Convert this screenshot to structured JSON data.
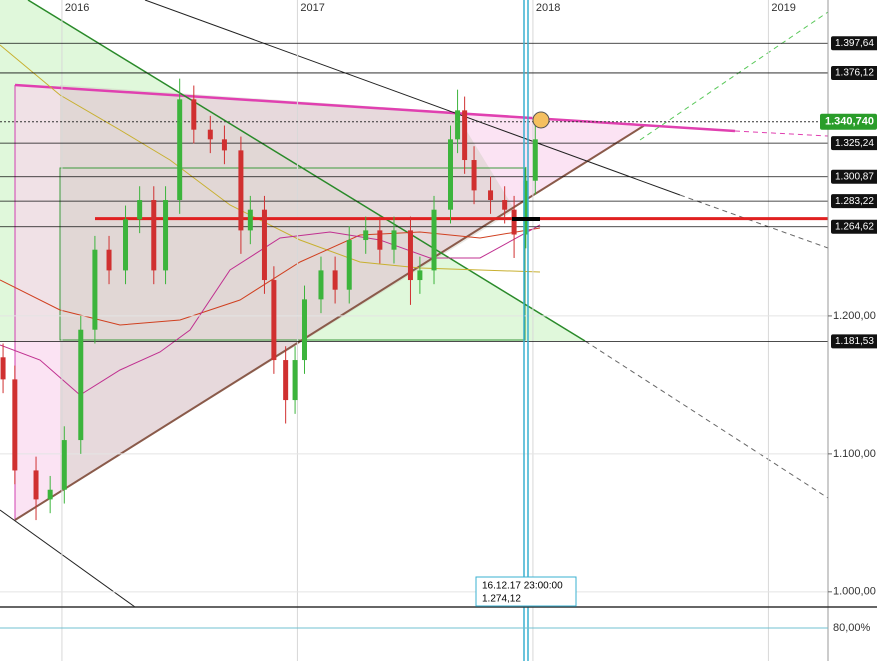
{
  "chart_data": {
    "type": "candlestick",
    "xlim": [
      2015.737,
      2019.253
    ],
    "xticks": [
      2016,
      2017,
      2018,
      2019
    ],
    "ylim": [
      0.989,
      1.429
    ],
    "yticks": [
      {
        "value": 1.0,
        "label": "1.000,00"
      },
      {
        "value": 1.1,
        "label": "1.100,00"
      },
      {
        "value": 1.2,
        "label": "1.200,00"
      }
    ],
    "up_color": "#3cb43c",
    "down_color": "#d03030",
    "x": [
      2015.75,
      2015.8,
      2015.89,
      2015.95,
      2016.01,
      2016.08,
      2016.14,
      2016.2,
      2016.27,
      2016.33,
      2016.39,
      2016.44,
      2016.5,
      2016.56,
      2016.63,
      2016.69,
      2016.76,
      2016.8,
      2016.86,
      2016.9,
      2016.95,
      2016.99,
      2017.03,
      2017.1,
      2017.16,
      2017.22,
      2017.29,
      2017.35,
      2017.41,
      2017.48,
      2017.52,
      2017.58,
      2017.65,
      2017.68,
      2017.71,
      2017.75,
      2017.82,
      2017.88,
      2017.92,
      2017.97,
      2018.01
    ],
    "open": [
      1.17,
      1.154,
      1.088,
      1.067,
      1.074,
      1.11,
      1.19,
      1.248,
      1.233,
      1.27,
      1.284,
      1.233,
      1.284,
      1.357,
      1.335,
      1.328,
      1.32,
      1.262,
      1.277,
      1.226,
      1.168,
      1.139,
      1.168,
      1.212,
      1.233,
      1.219,
      1.255,
      1.262,
      1.248,
      1.262,
      1.226,
      1.233,
      1.277,
      1.328,
      1.349,
      1.313,
      1.291,
      1.284,
      1.277,
      1.259,
      1.298
    ],
    "high": [
      1.18,
      1.164,
      1.098,
      1.084,
      1.12,
      1.2,
      1.258,
      1.258,
      1.28,
      1.294,
      1.294,
      1.294,
      1.372,
      1.367,
      1.345,
      1.338,
      1.33,
      1.287,
      1.287,
      1.236,
      1.178,
      1.178,
      1.222,
      1.243,
      1.243,
      1.265,
      1.272,
      1.272,
      1.272,
      1.272,
      1.243,
      1.287,
      1.338,
      1.364,
      1.359,
      1.323,
      1.301,
      1.294,
      1.287,
      1.308,
      1.34
    ],
    "low": [
      1.144,
      1.078,
      1.052,
      1.057,
      1.064,
      1.1,
      1.18,
      1.223,
      1.223,
      1.26,
      1.223,
      1.223,
      1.274,
      1.325,
      1.318,
      1.31,
      1.245,
      1.252,
      1.216,
      1.158,
      1.122,
      1.129,
      1.158,
      1.202,
      1.209,
      1.209,
      1.245,
      1.238,
      1.238,
      1.208,
      1.216,
      1.223,
      1.267,
      1.318,
      1.303,
      1.281,
      1.274,
      1.267,
      1.242,
      1.249,
      1.288
    ],
    "close": [
      1.154,
      1.088,
      1.067,
      1.074,
      1.11,
      1.19,
      1.248,
      1.233,
      1.27,
      1.284,
      1.233,
      1.284,
      1.357,
      1.335,
      1.328,
      1.32,
      1.262,
      1.277,
      1.226,
      1.168,
      1.139,
      1.168,
      1.212,
      1.233,
      1.219,
      1.255,
      1.262,
      1.248,
      1.262,
      1.226,
      1.233,
      1.277,
      1.328,
      1.349,
      1.313,
      1.291,
      1.284,
      1.277,
      1.259,
      1.298,
      1.328
    ],
    "levels": [
      {
        "value": 1.39764,
        "label": "1.397,64"
      },
      {
        "value": 1.37612,
        "label": "1.376,12"
      },
      {
        "value": 1.32524,
        "label": "1.325,24"
      },
      {
        "value": 1.30087,
        "label": "1.300,87"
      },
      {
        "value": 1.28322,
        "label": "1.283,22"
      },
      {
        "value": 1.26462,
        "label": "1.264,62"
      },
      {
        "value": 1.18153,
        "label": "1.181,53"
      }
    ],
    "red_level": 1.2705,
    "current_price": {
      "value": 1.34074,
      "label": "1.340,740",
      "color": "#2a9d2a"
    },
    "tooltip": {
      "date": "16.12.17 23:00:00",
      "price": "1.274,12"
    },
    "oscillator": {
      "ylim": [
        0,
        100
      ],
      "yticks": [
        {
          "value": 80,
          "label": "80,00%"
        }
      ]
    }
  }
}
